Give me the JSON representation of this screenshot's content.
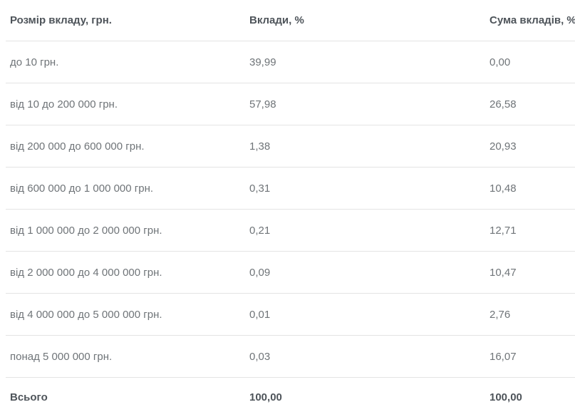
{
  "table": {
    "columns": [
      {
        "key": "size",
        "label": "Розмір вкладу, грн."
      },
      {
        "key": "deposits_pct",
        "label": "Вклади, %"
      },
      {
        "key": "sum_pct",
        "label": "Сума вкладів, %"
      }
    ],
    "rows": [
      {
        "size": "до 10 грн.",
        "deposits_pct": "39,99",
        "sum_pct": "0,00"
      },
      {
        "size": "від 10 до 200 000 грн.",
        "deposits_pct": "57,98",
        "sum_pct": "26,58"
      },
      {
        "size": "від 200 000 до 600 000 грн.",
        "deposits_pct": "1,38",
        "sum_pct": "20,93"
      },
      {
        "size": "від 600 000 до 1 000 000 грн.",
        "deposits_pct": "0,31",
        "sum_pct": "10,48"
      },
      {
        "size": "від 1 000 000 до 2 000 000 грн.",
        "deposits_pct": "0,21",
        "sum_pct": "12,71"
      },
      {
        "size": "від 2 000 000 до 4 000 000 грн.",
        "deposits_pct": "0,09",
        "sum_pct": "10,47"
      },
      {
        "size": "від 4 000 000 до 5 000 000 грн.",
        "deposits_pct": "0,01",
        "sum_pct": "2,76"
      },
      {
        "size": "понад 5 000 000 грн.",
        "deposits_pct": "0,03",
        "sum_pct": "16,07"
      }
    ],
    "footer": {
      "size": "Всього",
      "deposits_pct": "100,00",
      "sum_pct": "100,00"
    }
  },
  "colors": {
    "header_text": "#4e545a",
    "body_text": "#6f7478",
    "border": "#e4e4e4",
    "background": "#ffffff"
  }
}
